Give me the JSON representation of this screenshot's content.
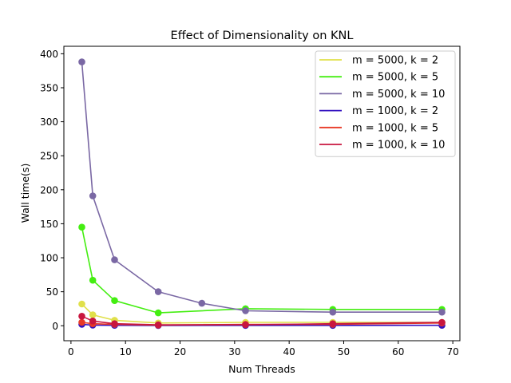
{
  "chart_data": {
    "type": "line",
    "title": "Effect of Dimensionality on KNL",
    "xlabel": "Num Threads",
    "ylabel": "Wall time(s)",
    "xlim": [
      -1.3,
      71.3
    ],
    "ylim": [
      -22,
      411
    ],
    "xticks": [
      0,
      10,
      20,
      30,
      40,
      50,
      60,
      70
    ],
    "yticks": [
      0,
      50,
      100,
      150,
      200,
      250,
      300,
      350,
      400
    ],
    "grid": false,
    "legend_position": "top-right",
    "markers": "circle",
    "series": [
      {
        "name": "m = 5000, k = 2",
        "color": "#e0e04a",
        "x": [
          2,
          4,
          8,
          16,
          32,
          48,
          68
        ],
        "y": [
          32,
          16,
          8,
          4,
          5,
          5,
          5
        ]
      },
      {
        "name": "m = 5000, k = 5",
        "color": "#44ee11",
        "x": [
          2,
          4,
          8,
          16,
          32,
          48,
          68
        ],
        "y": [
          145,
          67,
          37,
          19,
          25,
          24,
          24
        ]
      },
      {
        "name": "m = 5000, k = 10",
        "color": "#7a68a4",
        "x": [
          2,
          4,
          8,
          16,
          24,
          32,
          48,
          68
        ],
        "y": [
          388,
          191,
          97,
          50,
          33,
          22,
          20,
          20
        ]
      },
      {
        "name": "m = 1000, k = 2",
        "color": "#3311c0",
        "x": [
          2,
          4,
          8,
          16,
          32,
          48,
          68
        ],
        "y": [
          2,
          1,
          0.6,
          0.4,
          0.5,
          0.5,
          0.6
        ]
      },
      {
        "name": "m = 1000, k = 5",
        "color": "#e83a26",
        "x": [
          2,
          4,
          8,
          16,
          32,
          48,
          68
        ],
        "y": [
          5,
          3,
          2,
          1,
          2,
          2,
          4
        ]
      },
      {
        "name": "m = 1000, k = 10",
        "color": "#c8163f",
        "x": [
          2,
          4,
          8,
          16,
          32,
          48,
          68
        ],
        "y": [
          14,
          7,
          3,
          1.5,
          1.5,
          3,
          5
        ]
      }
    ]
  }
}
